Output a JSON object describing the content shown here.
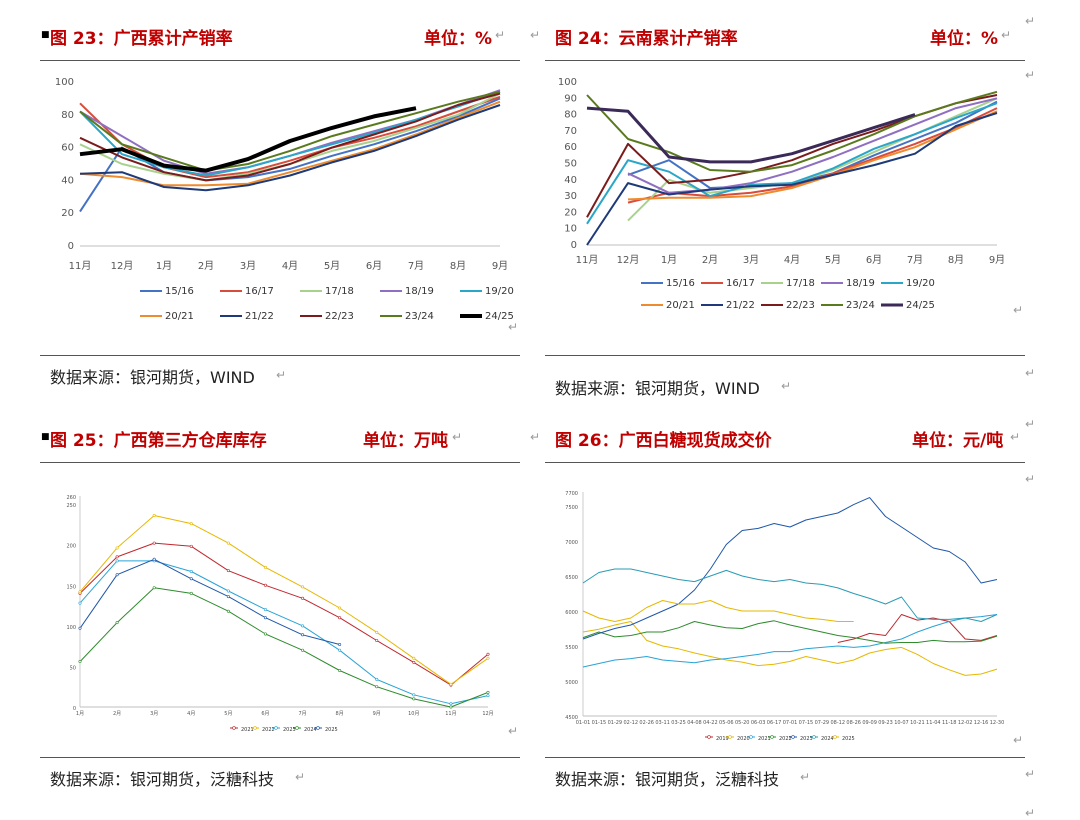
{
  "panels": [
    {
      "id": "p23",
      "title": "图 23：广西累计产销率",
      "unit": "单位：%",
      "source": "数据来源：银河期货，WIND"
    },
    {
      "id": "p24",
      "title": "图 24：云南累计产销率",
      "unit": "单位：%",
      "source": "数据来源：银河期货，WIND"
    },
    {
      "id": "p25",
      "title": "图 25：广西第三方仓库库存",
      "unit": "单位：万吨",
      "source": "数据来源：银河期货，泛糖科技"
    },
    {
      "id": "p26",
      "title": "图 26：广西白糖现货成交价",
      "unit": "单位：元/吨",
      "source": "数据来源：银河期货，泛糖科技"
    }
  ],
  "return_mark": "↵",
  "bullet": "■",
  "chart_data": [
    {
      "type": "line",
      "categories": [
        "11月",
        "12月",
        "1月",
        "2月",
        "3月",
        "4月",
        "5月",
        "6月",
        "7月",
        "8月",
        "9月"
      ],
      "ylim": [
        0,
        100
      ],
      "yticks": [
        0,
        20,
        40,
        60,
        80,
        100
      ],
      "series": [
        {
          "name": "15/16",
          "color": "#4472c4",
          "values": [
            21,
            60,
            45,
            40,
            42,
            47,
            55,
            62,
            70,
            79,
            90
          ]
        },
        {
          "name": "16/17",
          "color": "#d94c3b",
          "values": [
            87,
            62,
            48,
            42,
            45,
            52,
            60,
            66,
            73,
            82,
            91
          ]
        },
        {
          "name": "17/18",
          "color": "#a9d18e",
          "values": [
            62,
            50,
            44,
            40,
            44,
            50,
            58,
            64,
            72,
            80,
            93
          ]
        },
        {
          "name": "18/19",
          "color": "#8e6fc1",
          "values": [
            82,
            67,
            52,
            44,
            48,
            55,
            63,
            70,
            77,
            86,
            95
          ]
        },
        {
          "name": "19/20",
          "color": "#2aa6c9",
          "values": [
            82,
            56,
            48,
            43,
            48,
            55,
            62,
            69,
            77,
            85,
            94
          ]
        },
        {
          "name": "20/21",
          "color": "#ed8b2f",
          "values": [
            44,
            42,
            37,
            37,
            38,
            45,
            52,
            59,
            68,
            78,
            88
          ]
        },
        {
          "name": "21/22",
          "color": "#1f3a78",
          "values": [
            44,
            45,
            36,
            34,
            37,
            43,
            51,
            58,
            67,
            77,
            86
          ]
        },
        {
          "name": "22/23",
          "color": "#7b1c1c",
          "values": [
            66,
            54,
            45,
            40,
            43,
            50,
            60,
            68,
            76,
            86,
            93
          ]
        },
        {
          "name": "23/24",
          "color": "#5a7a1e",
          "values": [
            82,
            62,
            54,
            46,
            50,
            58,
            67,
            74,
            81,
            88,
            94
          ]
        },
        {
          "name": "24/25",
          "color": "#000000",
          "values": [
            56,
            59,
            49,
            46,
            53,
            64,
            72,
            79,
            84,
            null,
            null
          ]
        }
      ]
    },
    {
      "type": "line",
      "categories": [
        "11月",
        "12月",
        "1月",
        "2月",
        "3月",
        "4月",
        "5月",
        "6月",
        "7月",
        "8月",
        "9月"
      ],
      "ylim": [
        0,
        100
      ],
      "yticks": [
        0,
        10,
        20,
        30,
        40,
        50,
        60,
        70,
        80,
        90,
        100
      ],
      "series": [
        {
          "name": "15/16",
          "color": "#4472c4",
          "values": [
            null,
            43,
            52,
            35,
            36,
            38,
            44,
            55,
            65,
            75,
            88
          ]
        },
        {
          "name": "16/17",
          "color": "#d94c3b",
          "values": [
            null,
            26,
            32,
            30,
            32,
            36,
            44,
            53,
            62,
            72,
            84
          ]
        },
        {
          "name": "17/18",
          "color": "#a9d18e",
          "values": [
            null,
            15,
            40,
            32,
            35,
            38,
            46,
            57,
            68,
            79,
            90
          ]
        },
        {
          "name": "18/19",
          "color": "#8e6fc1",
          "values": [
            null,
            44,
            32,
            34,
            38,
            45,
            54,
            64,
            74,
            84,
            90
          ]
        },
        {
          "name": "19/20",
          "color": "#2aa6c9",
          "values": [
            13,
            52,
            45,
            30,
            37,
            38,
            47,
            59,
            68,
            78,
            87
          ]
        },
        {
          "name": "20/21",
          "color": "#ed8b2f",
          "values": [
            null,
            28,
            29,
            29,
            30,
            35,
            43,
            52,
            60,
            71,
            82
          ]
        },
        {
          "name": "21/22",
          "color": "#1f3a78",
          "values": [
            0,
            38,
            31,
            34,
            36,
            37,
            43,
            49,
            56,
            73,
            81
          ]
        },
        {
          "name": "22/23",
          "color": "#7b1c1c",
          "values": [
            17,
            62,
            38,
            40,
            45,
            52,
            62,
            70,
            79,
            87,
            92
          ]
        },
        {
          "name": "23/24",
          "color": "#5a7a1e",
          "values": [
            92,
            65,
            57,
            46,
            45,
            49,
            58,
            68,
            79,
            87,
            94
          ]
        },
        {
          "name": "24/25",
          "color": "#3b2a58",
          "values": [
            84,
            82,
            54,
            51,
            51,
            56,
            64,
            72,
            80,
            null,
            null
          ]
        }
      ]
    },
    {
      "type": "line",
      "categories": [
        "1月",
        "2月",
        "3月",
        "4月",
        "5月",
        "6月",
        "7月",
        "8月",
        "9月",
        "10月",
        "11月",
        "12月"
      ],
      "ylim": [
        0,
        260
      ],
      "yticks": [
        0,
        50,
        100,
        150,
        200,
        250,
        260
      ],
      "series": [
        {
          "name": "2021",
          "color": "#c0272d",
          "values": [
            140,
            185,
            202,
            198,
            168,
            150,
            134,
            110,
            82,
            55,
            27,
            65
          ]
        },
        {
          "name": "2022",
          "color": "#e6b800",
          "values": [
            142,
            196,
            236,
            226,
            202,
            172,
            148,
            122,
            92,
            60,
            28,
            60
          ]
        },
        {
          "name": "2023",
          "color": "#29a3d6",
          "values": [
            128,
            180,
            180,
            167,
            143,
            120,
            100,
            70,
            34,
            15,
            4,
            14
          ]
        },
        {
          "name": "2024",
          "color": "#2e8b2e",
          "values": [
            56,
            104,
            147,
            140,
            118,
            90,
            70,
            45,
            25,
            10,
            0,
            18
          ]
        },
        {
          "name": "2025",
          "color": "#1f56a8",
          "values": [
            97,
            163,
            182,
            158,
            136,
            110,
            89,
            77,
            null,
            null,
            null,
            null
          ]
        }
      ]
    },
    {
      "type": "line",
      "categories": [
        "01-01",
        "01-15",
        "01-29",
        "02-12",
        "02-26",
        "03-11",
        "03-25",
        "04-08",
        "04-22",
        "05-06",
        "05-20",
        "06-03",
        "06-17",
        "07-01",
        "07-15",
        "07-29",
        "08-12",
        "08-26",
        "09-09",
        "09-23",
        "10-07",
        "10-21",
        "11-04",
        "11-18",
        "12-02",
        "12-16",
        "12-30"
      ],
      "ylim": [
        4500,
        7700
      ],
      "yticks": [
        4500,
        5000,
        5500,
        6000,
        6500,
        7000,
        7500,
        7700
      ],
      "series": [
        {
          "name": "2019",
          "color": "#c0272d",
          "values": [
            null,
            null,
            null,
            null,
            null,
            null,
            null,
            null,
            null,
            null,
            null,
            null,
            null,
            null,
            null,
            null,
            5550,
            5600,
            5680,
            5650,
            5950,
            5870,
            5900,
            5850,
            5600,
            5580,
            5650
          ]
        },
        {
          "name": "2020",
          "color": "#e6b800",
          "values": [
            5700,
            5740,
            5800,
            5850,
            5580,
            5500,
            5460,
            5400,
            5350,
            5300,
            5270,
            5220,
            5240,
            5280,
            5350,
            5300,
            5250,
            5300,
            5400,
            5450,
            5480,
            5380,
            5250,
            5160,
            5080,
            5100,
            5170
          ]
        },
        {
          "name": "2021",
          "color": "#29a3d6",
          "values": [
            5200,
            5250,
            5300,
            5320,
            5350,
            5300,
            5280,
            5260,
            5300,
            5320,
            5350,
            5380,
            5420,
            5420,
            5460,
            5480,
            5500,
            5480,
            5500,
            5550,
            5600,
            5700,
            5780,
            5850,
            5900,
            5920,
            5950
          ]
        },
        {
          "name": "2022",
          "color": "#2e8b2e",
          "values": [
            5620,
            5700,
            5630,
            5650,
            5700,
            5700,
            5760,
            5850,
            5800,
            5760,
            5750,
            5820,
            5860,
            5800,
            5750,
            5700,
            5650,
            5620,
            5580,
            5540,
            5550,
            5550,
            5580,
            5560,
            5560,
            5570,
            5640
          ]
        },
        {
          "name": "2023",
          "color": "#1f56a8",
          "values": [
            5600,
            5680,
            5750,
            5800,
            5900,
            6000,
            6100,
            6300,
            6600,
            6950,
            7150,
            7180,
            7250,
            7200,
            7300,
            7350,
            7400,
            7520,
            7620,
            7350,
            7200,
            7050,
            6900,
            6850,
            6700,
            6400,
            6450
          ]
        },
        {
          "name": "2024",
          "color": "#2a9bb5",
          "values": [
            6400,
            6550,
            6600,
            6600,
            6550,
            6500,
            6450,
            6420,
            6500,
            6580,
            6500,
            6450,
            6420,
            6450,
            6400,
            6380,
            6330,
            6250,
            6180,
            6100,
            6200,
            5900,
            5880,
            5880,
            5900,
            5850,
            5950
          ]
        },
        {
          "name": "2025",
          "color": "#e6b800",
          "values": [
            6000,
            5900,
            5850,
            5900,
            6050,
            6150,
            6100,
            6100,
            6150,
            6050,
            6000,
            6000,
            6000,
            5950,
            5900,
            5880,
            5850,
            5850,
            null,
            null,
            null,
            null,
            null,
            null,
            null,
            null,
            null
          ]
        }
      ]
    }
  ]
}
